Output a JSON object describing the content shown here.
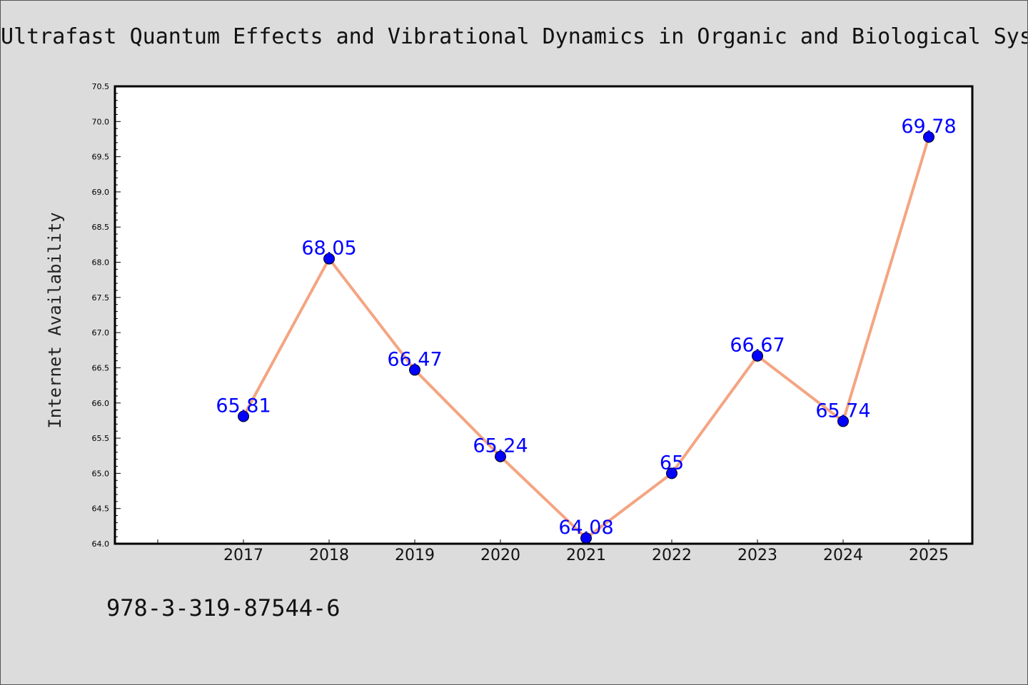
{
  "chart_data": {
    "type": "line",
    "title": "Ultrafast Quantum Effects and Vibrational Dynamics in Organic and Biological Sys",
    "xlabel": "",
    "ylabel": "Internet Availability",
    "categories": [
      "2017",
      "2018",
      "2019",
      "2020",
      "2021",
      "2022",
      "2023",
      "2024",
      "2025"
    ],
    "series": [
      {
        "values": [
          65.81,
          68.05,
          66.47,
          65.24,
          64.08,
          65,
          66.67,
          65.74,
          69.78
        ],
        "labels": [
          "65.81",
          "68.05",
          "66.47",
          "65.24",
          "64.08",
          "65",
          "66.67",
          "65.74",
          "69.78"
        ]
      }
    ],
    "ylim": [
      64.0,
      70.5
    ],
    "yticks": [
      "64.0",
      "64.5",
      "65.0",
      "65.5",
      "66.0",
      "66.5",
      "67.0",
      "67.5",
      "68.0",
      "68.5",
      "69.0",
      "69.5",
      "70.0",
      "70.5"
    ],
    "grid": false,
    "colors": {
      "line": "#f4a582",
      "marker": "#0000ff",
      "label": "#0000ff",
      "frame": "#000000",
      "plot_bg": "#ffffff"
    }
  },
  "footer": {
    "isbn": "978-3-319-87544-6"
  }
}
